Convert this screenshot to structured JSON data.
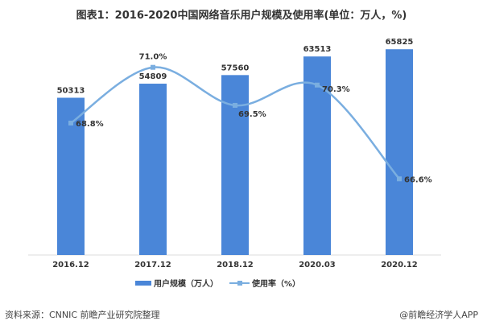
{
  "chart_data": {
    "type": "bar+line",
    "title": "图表1：2016-2020中国网络音乐用户规模及使用率(单位：万人，%)",
    "categories": [
      "2016.12",
      "2017.12",
      "2018.12",
      "2020.03",
      "2020.12"
    ],
    "series": [
      {
        "name": "用户规模（万人）",
        "type": "bar",
        "axis": "left",
        "values": [
          50313,
          54809,
          57560,
          63513,
          65825
        ],
        "labels": [
          "50313",
          "54809",
          "57560",
          "63513",
          "65825"
        ],
        "color": "#4a86d8"
      },
      {
        "name": "使用率（%）",
        "type": "line",
        "axis": "right",
        "smooth": true,
        "values": [
          68.8,
          71.0,
          69.5,
          70.3,
          66.6
        ],
        "labels": [
          "68.8%",
          "71.0%",
          "69.5%",
          "70.3%",
          "66.6%"
        ],
        "color": "#7aaee0"
      }
    ],
    "ylim": [
      0,
      70000
    ],
    "y2lim": [
      66,
      71.5
    ],
    "grid": false,
    "legend": "bottom-center"
  },
  "footer": {
    "source": "资料来源：CNNIC 前瞻产业研究院整理",
    "brand": "@前瞻经济学人APP"
  }
}
